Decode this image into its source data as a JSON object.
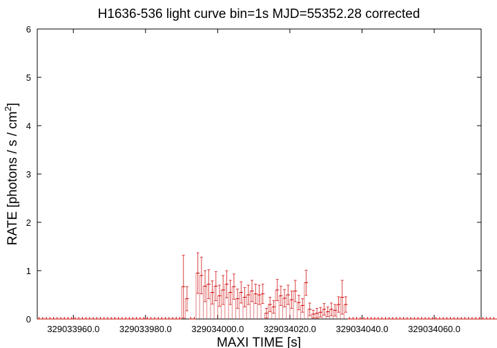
{
  "chart_data": {
    "type": "line",
    "title": "H1636-536 light curve bin=1s MJD=55352.28 corrected",
    "xlabel": "MAXI TIME [s]",
    "ylabel": "RATE [photons / s / cm",
    "ylabel_sup": "2",
    "ylabel_end": "]",
    "xlim": [
      329033950,
      329034073
    ],
    "ylim": [
      0,
      6
    ],
    "xticks": [
      329033960,
      329033980,
      329034000,
      329034020,
      329034040,
      329034060
    ],
    "xtick_labels": [
      "329033960.0",
      "329033980.0",
      "329034000.0",
      "329034020.0",
      "329034040.0",
      "329034060.0"
    ],
    "yticks": [
      0,
      1,
      2,
      3,
      4,
      5,
      6
    ],
    "ytick_labels": [
      "0",
      "1",
      "2",
      "3",
      "4",
      "5",
      "6"
    ],
    "grid": false,
    "series": [
      {
        "color": "#cc0000",
        "step": 1,
        "x_start": 329033950,
        "values": [
          0,
          0,
          0,
          0,
          0,
          0,
          0,
          0,
          0,
          0,
          0,
          0,
          0,
          0,
          0,
          0,
          0,
          0,
          0,
          0,
          0,
          0,
          0,
          0,
          0,
          0,
          0,
          0,
          0,
          0,
          0,
          0,
          0,
          0,
          0,
          0,
          0,
          0,
          0,
          0,
          0.67,
          0.42,
          0,
          0,
          0.95,
          0.9,
          0.68,
          0.72,
          0.55,
          0.68,
          0.48,
          0.6,
          0.72,
          0.55,
          0.67,
          0.42,
          0.55,
          0.45,
          0.5,
          0.58,
          0.52,
          0.5,
          0.52,
          0.12,
          0.3,
          0.25,
          0.6,
          0.48,
          0.43,
          0.5,
          0.4,
          0.58,
          0.34,
          0.28,
          0.75,
          0.2,
          0.1,
          0.12,
          0.14,
          0.2,
          0.15,
          0.2,
          0.18,
          0.3,
          0.45,
          0.3,
          0,
          0,
          0,
          0,
          0,
          0,
          0,
          0,
          0,
          0,
          0,
          0,
          0,
          0,
          0,
          0,
          0,
          0,
          0,
          0,
          0,
          0,
          0,
          0,
          0,
          0,
          0,
          0,
          0,
          0,
          0,
          0,
          0,
          0,
          0,
          0,
          0,
          0,
          0,
          0,
          0,
          0,
          0
        ],
        "errors": [
          0,
          0,
          0,
          0,
          0,
          0,
          0,
          0,
          0,
          0,
          0,
          0,
          0,
          0,
          0,
          0,
          0,
          0,
          0,
          0,
          0,
          0,
          0,
          0,
          0,
          0,
          0,
          0,
          0,
          0,
          0,
          0,
          0,
          0,
          0,
          0,
          0,
          0,
          0,
          0,
          0.65,
          0.25,
          0,
          0,
          0.42,
          0.38,
          0.32,
          0.3,
          0.24,
          0.3,
          0.22,
          0.3,
          0.28,
          0.25,
          0.26,
          0.2,
          0.22,
          0.2,
          0.2,
          0.22,
          0.2,
          0.2,
          0.2,
          0.1,
          0.15,
          0.13,
          0.22,
          0.2,
          0.18,
          0.2,
          0.18,
          0.22,
          0.15,
          0.14,
          0.26,
          0.13,
          0.08,
          0.1,
          0.1,
          0.12,
          0.1,
          0.13,
          0.12,
          0.16,
          0.35,
          0.16,
          0,
          0,
          0,
          0,
          0,
          0,
          0,
          0,
          0,
          0,
          0,
          0,
          0,
          0,
          0,
          0,
          0,
          0,
          0,
          0,
          0,
          0,
          0,
          0,
          0,
          0,
          0,
          0,
          0,
          0,
          0,
          0,
          0,
          0,
          0,
          0,
          0,
          0,
          0,
          0,
          0,
          0,
          0
        ]
      }
    ]
  }
}
